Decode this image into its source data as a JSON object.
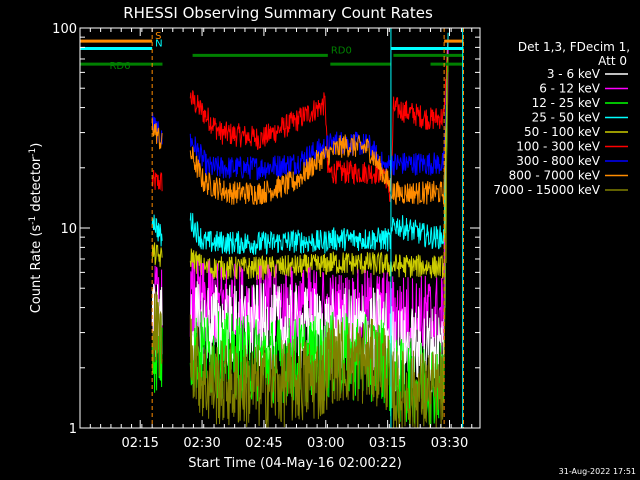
{
  "chart_data": {
    "type": "line",
    "title": "RHESSI Observing Summary Count Rates",
    "xlabel": "Start Time (04-May-16 02:00:22)",
    "ylabel_main": "Count Rate (s",
    "ylabel_sup": "-1",
    "ylabel_rest": " detector",
    "ylabel_close": ")",
    "x_units": "minutes after 02:00:22",
    "xlim": [
      0,
      97
    ],
    "ylim": [
      1,
      100
    ],
    "yscale": "log",
    "x_ticks": [
      {
        "label": "02:15",
        "value": 14.6
      },
      {
        "label": "02:30",
        "value": 29.6
      },
      {
        "label": "02:45",
        "value": 44.6
      },
      {
        "label": "03:00",
        "value": 59.6
      },
      {
        "label": "03:15",
        "value": 74.6
      },
      {
        "label": "03:30",
        "value": 89.6
      }
    ],
    "y_ticks": [
      {
        "label": "1",
        "value": 1
      },
      {
        "label": "10",
        "value": 10
      },
      {
        "label": "100",
        "value": 100
      }
    ],
    "legend_header": [
      "Det 1,3, FDecim 1,",
      "Att 0"
    ],
    "legend_placement": "right",
    "flags": [
      {
        "name": "S",
        "color": "#ff8c00",
        "y": 86,
        "segments": [
          [
            0,
            17.5
          ],
          [
            88.3,
            93
          ]
        ]
      },
      {
        "name": "N",
        "color": "#00ffff",
        "y": 79,
        "segments": [
          [
            0,
            17.5
          ],
          [
            75.4,
            93
          ]
        ]
      },
      {
        "name": "RD0",
        "color": "#008000",
        "y": 73,
        "segments": [
          [
            27.3,
            60.1
          ],
          [
            76,
            93
          ]
        ]
      },
      {
        "name": "RD6",
        "color": "#008000",
        "y": 66,
        "segments": [
          [
            0,
            20
          ],
          [
            60.7,
            75.4
          ],
          [
            85,
            93
          ]
        ]
      }
    ],
    "vertical_lines": [
      {
        "x": 0,
        "color": "#00ffff",
        "style": "solid"
      },
      {
        "x": 17.5,
        "color": "#ff8c00",
        "style": "dashed"
      },
      {
        "x": 75.4,
        "color": "#00ffff",
        "style": "solid"
      },
      {
        "x": 88.3,
        "color": "#ff8c00",
        "style": "dashed"
      },
      {
        "x": 92.8,
        "color": "#00ffff",
        "style": "solid"
      },
      {
        "x": 93,
        "color": "#ff8c00",
        "style": "dashed"
      }
    ],
    "series": [
      {
        "name": "3 - 6 keV",
        "color": "#ffffff"
      },
      {
        "name": "6 - 12 keV",
        "color": "#ff00ff"
      },
      {
        "name": "12 - 25 keV",
        "color": "#00ff00"
      },
      {
        "name": "25 - 50 keV",
        "color": "#00ffff"
      },
      {
        "name": "50 - 100 keV",
        "color": "#cccc00"
      },
      {
        "name": "100 - 300 keV",
        "color": "#ff0000"
      },
      {
        "name": "300 - 800 keV",
        "color": "#0000ff"
      },
      {
        "name": "800 - 7000 keV",
        "color": "#ff8c00"
      },
      {
        "name": "7000 - 15000 keV",
        "color": "#808000"
      }
    ],
    "gap": [
      20,
      26.7
    ],
    "series_profiles": [
      {
        "series": "100 - 300 keV",
        "points": [
          [
            17.5,
            17
          ],
          [
            20,
            17
          ],
          [
            26.7,
            45
          ],
          [
            34,
            30
          ],
          [
            44,
            28
          ],
          [
            52,
            34
          ],
          [
            59.5,
            42
          ],
          [
            60.1,
            19
          ],
          [
            67,
            19
          ],
          [
            74,
            19
          ],
          [
            75.4,
            14
          ],
          [
            76,
            40
          ],
          [
            85,
            35
          ],
          [
            88.3,
            36
          ],
          [
            89.3,
            95
          ]
        ]
      },
      {
        "series": "300 - 800 keV",
        "points": [
          [
            17.5,
            34
          ],
          [
            20,
            27
          ],
          [
            26.7,
            28
          ],
          [
            31,
            20
          ],
          [
            44,
            20
          ],
          [
            52,
            21
          ],
          [
            57,
            24
          ],
          [
            62,
            27
          ],
          [
            70,
            26
          ],
          [
            74,
            20
          ],
          [
            75.4,
            21
          ],
          [
            76,
            21
          ],
          [
            85,
            21
          ],
          [
            88.3,
            21
          ],
          [
            89.3,
            95
          ]
        ]
      },
      {
        "series": "800 - 7000 keV",
        "points": [
          [
            17.5,
            33
          ],
          [
            20,
            26
          ],
          [
            26.7,
            24
          ],
          [
            30,
            17
          ],
          [
            36,
            15
          ],
          [
            44,
            15
          ],
          [
            52,
            17
          ],
          [
            58,
            22
          ],
          [
            64,
            26
          ],
          [
            70,
            25
          ],
          [
            74,
            18
          ],
          [
            75.4,
            16
          ],
          [
            76,
            15
          ],
          [
            85,
            15
          ],
          [
            88.3,
            15
          ],
          [
            89.3,
            95
          ]
        ]
      },
      {
        "series": "25 - 50 keV",
        "points": [
          [
            17.5,
            11.5
          ],
          [
            20,
            8.6
          ],
          [
            26.7,
            11
          ],
          [
            30,
            8.5
          ],
          [
            44,
            8.4
          ],
          [
            52,
            8.6
          ],
          [
            59.5,
            8.5
          ],
          [
            60.1,
            8.8
          ],
          [
            74,
            8.8
          ],
          [
            75.4,
            8.6
          ],
          [
            76,
            10.5
          ],
          [
            85,
            9
          ],
          [
            88.3,
            9
          ],
          [
            89.3,
            95
          ]
        ]
      },
      {
        "series": "50 - 100 keV",
        "points": [
          [
            17.5,
            7.5
          ],
          [
            20,
            7.0
          ],
          [
            26.7,
            7.2
          ],
          [
            30,
            6.3
          ],
          [
            44,
            6.3
          ],
          [
            59.5,
            6.5
          ],
          [
            60.1,
            6.7
          ],
          [
            74,
            6.6
          ],
          [
            75.4,
            6.4
          ],
          [
            76,
            6.5
          ],
          [
            85,
            6.4
          ],
          [
            88.3,
            6.4
          ],
          [
            89.3,
            95
          ]
        ]
      },
      {
        "series": "6 - 12 keV",
        "points": [
          [
            17.5,
            4.2
          ],
          [
            20,
            3.8
          ],
          [
            26.7,
            4.2
          ],
          [
            44,
            4.0
          ],
          [
            59.5,
            3.9
          ],
          [
            60.1,
            3.7
          ],
          [
            74,
            3.8
          ],
          [
            75.4,
            3.6
          ],
          [
            76,
            3.6
          ],
          [
            88.3,
            3.6
          ],
          [
            89.3,
            90
          ]
        ]
      },
      {
        "series": "3 - 6 keV",
        "points": [
          [
            17.5,
            3.6
          ],
          [
            20,
            3.2
          ],
          [
            26.7,
            3.3
          ],
          [
            44,
            3.2
          ],
          [
            59.5,
            3.1
          ],
          [
            60.1,
            3.0
          ],
          [
            74,
            3.1
          ],
          [
            75.4,
            2.6
          ],
          [
            76,
            2.5
          ],
          [
            88.3,
            2.5
          ],
          [
            89.3,
            95
          ]
        ]
      },
      {
        "series": "12 - 25 keV",
        "points": [
          [
            17.5,
            2.5
          ],
          [
            20,
            2.3
          ],
          [
            26.7,
            2.4
          ],
          [
            44,
            2.2
          ],
          [
            59.5,
            2.2
          ],
          [
            60.1,
            2.3
          ],
          [
            74,
            2.2
          ],
          [
            75.4,
            1.8
          ],
          [
            76,
            1.7
          ],
          [
            88.3,
            1.7
          ],
          [
            89.3,
            95
          ]
        ]
      },
      {
        "series": "7000 - 15000 keV",
        "points": [
          [
            17.5,
            3.2
          ],
          [
            20,
            2.8
          ],
          [
            26.7,
            2.5
          ],
          [
            30,
            1.7
          ],
          [
            44,
            1.6
          ],
          [
            59.5,
            1.8
          ],
          [
            60.1,
            2.2
          ],
          [
            74,
            2.1
          ],
          [
            75.4,
            1.6
          ],
          [
            76,
            1.5
          ],
          [
            88.3,
            1.5
          ],
          [
            89.3,
            95
          ]
        ]
      }
    ]
  },
  "footer_timestamp": "31-Aug-2022 17:51"
}
